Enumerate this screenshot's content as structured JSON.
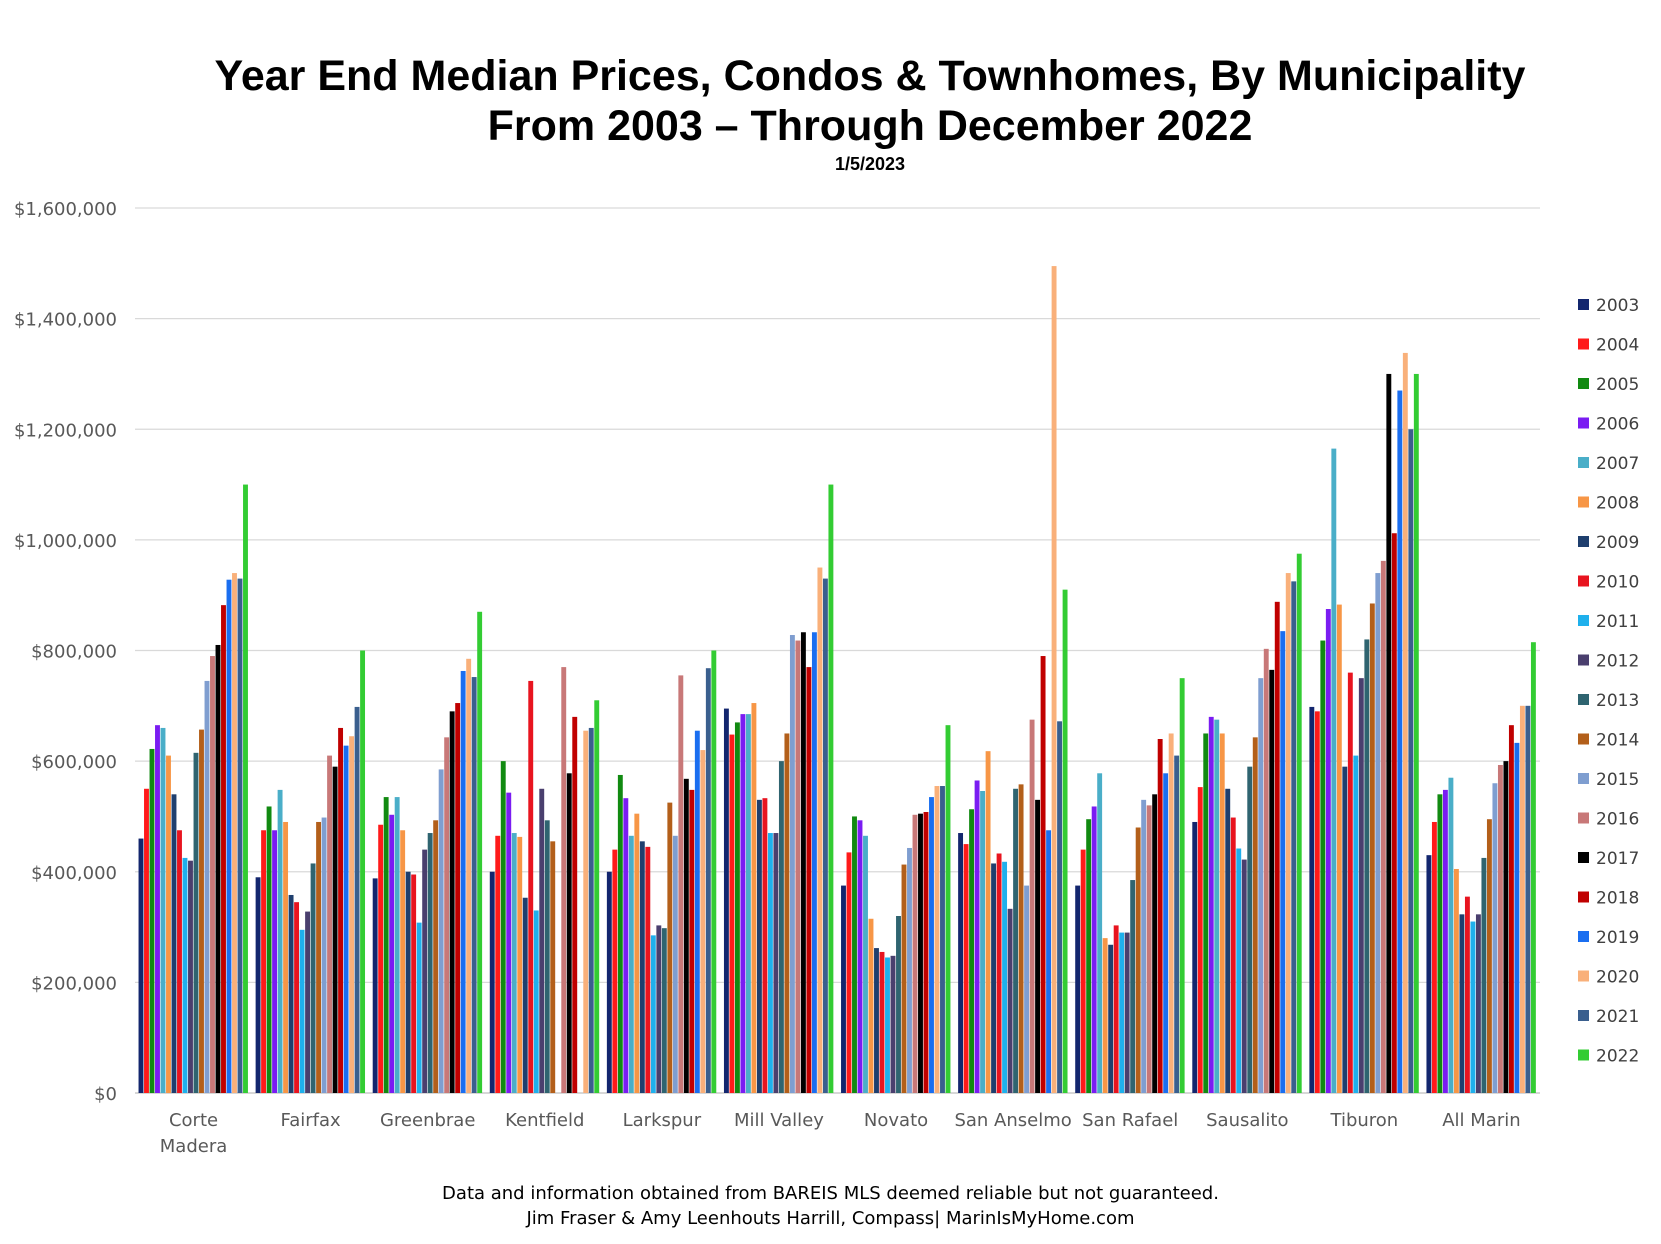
{
  "chart_data": {
    "type": "bar",
    "title": "Year End Median Prices, Condos & Townhomes, By Municipality",
    "subtitle": "From 2003 – Through December 2022",
    "date": "1/5/2023",
    "xlabel": "",
    "ylabel": "",
    "ylim": [
      0,
      1600000
    ],
    "y_ticks": [
      {
        "value": 0,
        "label": "$0"
      },
      {
        "value": 200000,
        "label": "$200,000"
      },
      {
        "value": 400000,
        "label": "$400,000"
      },
      {
        "value": 600000,
        "label": "$600,000"
      },
      {
        "value": 800000,
        "label": "$800,000"
      },
      {
        "value": 1000000,
        "label": "$1,000,000"
      },
      {
        "value": 1200000,
        "label": "$1,200,000"
      },
      {
        "value": 1400000,
        "label": "$1,400,000"
      },
      {
        "value": 1600000,
        "label": "$1,600,000"
      }
    ],
    "grid": true,
    "legend_position": "right",
    "categories": [
      "Corte Madera",
      "Fairfax",
      "Greenbrae",
      "Kentfield",
      "Larkspur",
      "Mill Valley",
      "Novato",
      "San Anselmo",
      "San Rafael",
      "Sausalito",
      "Tiburon",
      "All Marin"
    ],
    "series": [
      {
        "name": "2003",
        "color": "#13266e",
        "values": [
          460000,
          390000,
          388000,
          400000,
          400000,
          695000,
          375000,
          470000,
          375000,
          490000,
          698000,
          430000
        ]
      },
      {
        "name": "2004",
        "color": "#ff1a1a",
        "values": [
          550000,
          475000,
          485000,
          465000,
          440000,
          648000,
          435000,
          450000,
          440000,
          553000,
          690000,
          490000
        ]
      },
      {
        "name": "2005",
        "color": "#118a11",
        "values": [
          622000,
          518000,
          535000,
          600000,
          575000,
          670000,
          500000,
          513000,
          495000,
          650000,
          818000,
          540000
        ]
      },
      {
        "name": "2006",
        "color": "#7a1cf2",
        "values": [
          665000,
          475000,
          503000,
          543000,
          533000,
          685000,
          493000,
          565000,
          518000,
          680000,
          875000,
          548000
        ]
      },
      {
        "name": "2007",
        "color": "#4aaec8",
        "values": [
          660000,
          548000,
          535000,
          470000,
          465000,
          685000,
          465000,
          546000,
          578000,
          675000,
          1165000,
          570000
        ]
      },
      {
        "name": "2008",
        "color": "#f79646",
        "values": [
          610000,
          490000,
          475000,
          463000,
          505000,
          705000,
          315000,
          618000,
          280000,
          650000,
          883000,
          405000
        ]
      },
      {
        "name": "2009",
        "color": "#1f3f6e",
        "values": [
          540000,
          358000,
          400000,
          353000,
          455000,
          530000,
          262000,
          415000,
          268000,
          550000,
          590000,
          323000
        ]
      },
      {
        "name": "2010",
        "color": "#e8141f",
        "values": [
          475000,
          345000,
          395000,
          745000,
          445000,
          533000,
          255000,
          433000,
          303000,
          498000,
          760000,
          355000
        ]
      },
      {
        "name": "2011",
        "color": "#1fb0ec",
        "values": [
          425000,
          295000,
          308000,
          330000,
          285000,
          470000,
          245000,
          418000,
          290000,
          442000,
          610000,
          310000
        ]
      },
      {
        "name": "2012",
        "color": "#4a3f6e",
        "values": [
          420000,
          328000,
          440000,
          550000,
          303000,
          470000,
          248000,
          333000,
          290000,
          422000,
          750000,
          323000
        ]
      },
      {
        "name": "2013",
        "color": "#2f6470",
        "values": [
          615000,
          415000,
          470000,
          493000,
          298000,
          600000,
          320000,
          550000,
          385000,
          590000,
          820000,
          425000
        ]
      },
      {
        "name": "2014",
        "color": "#b35f1a",
        "values": [
          657000,
          490000,
          493000,
          455000,
          525000,
          650000,
          413000,
          558000,
          480000,
          643000,
          885000,
          495000
        ]
      },
      {
        "name": "2015",
        "color": "#7f9ed0",
        "values": [
          745000,
          498000,
          585000,
          0,
          465000,
          828000,
          443000,
          375000,
          530000,
          750000,
          940000,
          560000
        ]
      },
      {
        "name": "2016",
        "color": "#c87878",
        "values": [
          790000,
          610000,
          643000,
          770000,
          755000,
          818000,
          503000,
          675000,
          520000,
          803000,
          962000,
          593000
        ]
      },
      {
        "name": "2017",
        "color": "#000000",
        "values": [
          810000,
          590000,
          690000,
          578000,
          568000,
          833000,
          505000,
          530000,
          540000,
          765000,
          1300000,
          600000
        ]
      },
      {
        "name": "2018",
        "color": "#c00000",
        "values": [
          882000,
          660000,
          705000,
          680000,
          548000,
          770000,
          508000,
          790000,
          640000,
          888000,
          1012000,
          665000
        ]
      },
      {
        "name": "2019",
        "color": "#1a6ef0",
        "values": [
          928000,
          628000,
          763000,
          0,
          655000,
          833000,
          535000,
          475000,
          578000,
          835000,
          1270000,
          633000
        ]
      },
      {
        "name": "2020",
        "color": "#f9b07a",
        "values": [
          940000,
          645000,
          785000,
          655000,
          620000,
          950000,
          555000,
          1495000,
          650000,
          940000,
          1338000,
          700000
        ]
      },
      {
        "name": "2021",
        "color": "#3a5f8e",
        "values": [
          930000,
          698000,
          752000,
          660000,
          768000,
          930000,
          555000,
          672000,
          610000,
          925000,
          1200000,
          700000
        ]
      },
      {
        "name": "2022",
        "color": "#33cc33",
        "values": [
          1100000,
          800000,
          870000,
          710000,
          800000,
          1100000,
          665000,
          910000,
          750000,
          975000,
          1300000,
          815000
        ]
      }
    ]
  },
  "footer": {
    "line1": "Data and information obtained from BAREIS MLS deemed reliable but not guaranteed.",
    "line2": "Jim Fraser & Amy Leenhouts Harrill, Compass| MarinIsMyHome.com"
  }
}
